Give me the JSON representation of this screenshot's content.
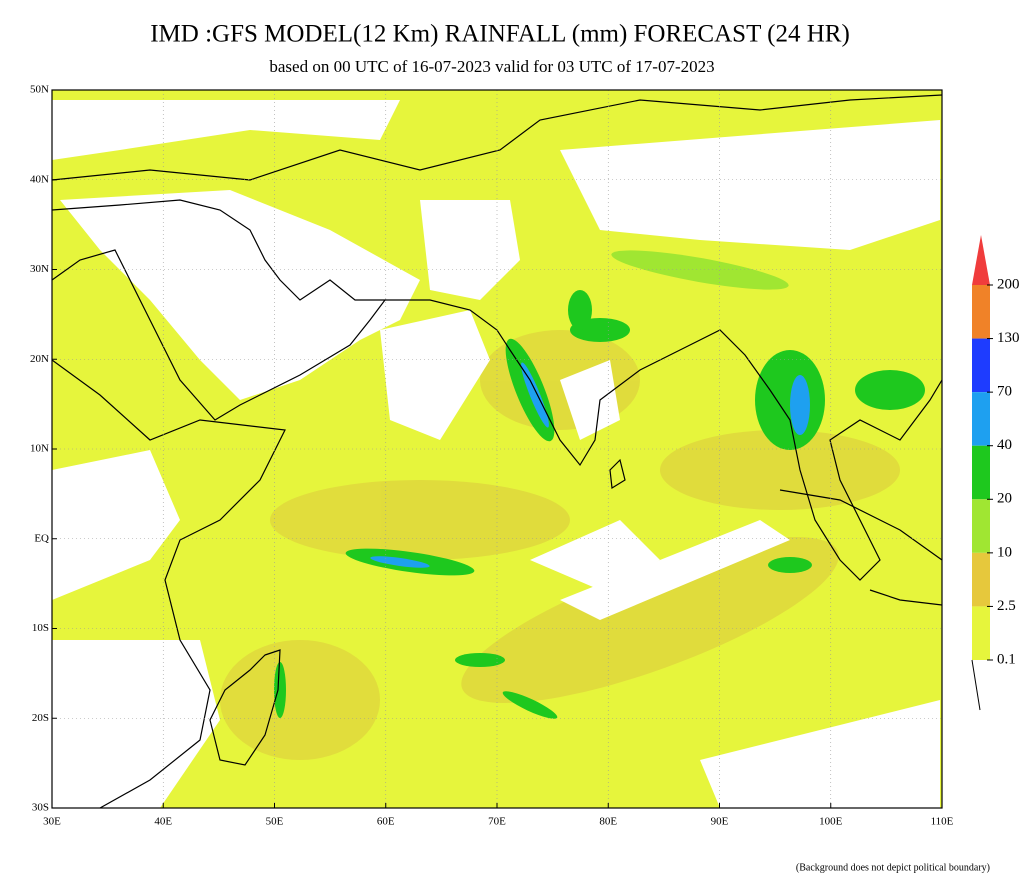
{
  "header": {
    "title": "IMD :GFS MODEL(12 Km) RAINFALL (mm) FORECAST (24 HR)",
    "subtitle": "based on 00 UTC of 16-07-2023 valid for 03 UTC of 17-07-2023"
  },
  "map": {
    "lat_labels": [
      "50N",
      "40N",
      "30N",
      "20N",
      "10N",
      "EQ",
      "10S",
      "20S",
      "30S"
    ],
    "lon_labels": [
      "30E",
      "40E",
      "50E",
      "60E",
      "70E",
      "80E",
      "90E",
      "100E",
      "110E"
    ]
  },
  "legend": {
    "levels": [
      "200",
      "130",
      "70",
      "40",
      "20",
      "10",
      "2.5",
      "0.1"
    ],
    "colors": [
      "#f03c3c",
      "#f08228",
      "#1e3cff",
      "#1ea0f0",
      "#1ec81e",
      "#a0e632",
      "#e6c83c",
      "#e6f53c"
    ]
  },
  "footnote": "(Background does not depict political boundary)"
}
